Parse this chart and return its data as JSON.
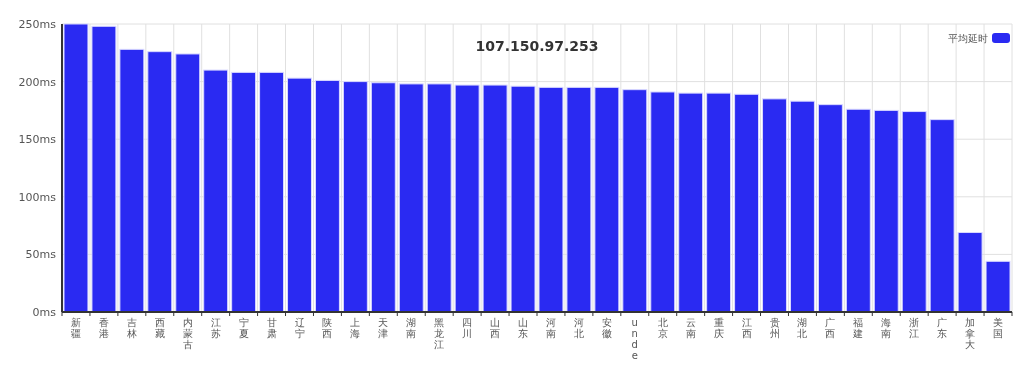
{
  "chart_data": {
    "type": "bar",
    "title": "107.150.97.253",
    "categories": [
      "新疆",
      "香港",
      "吉林",
      "西藏",
      "内蒙古",
      "江苏",
      "宁夏",
      "甘肃",
      "辽宁",
      "陕西",
      "上海",
      "天津",
      "湖南",
      "黑龙江",
      "四川",
      "山西",
      "山东",
      "河南",
      "河北",
      "安徽",
      "unde",
      "北京",
      "云南",
      "重庆",
      "江西",
      "贵州",
      "湖北",
      "广西",
      "福建",
      "海南",
      "浙江",
      "广东",
      "加拿大",
      "美国"
    ],
    "series": [
      {
        "name": "平均延时",
        "color": "#2a2af2",
        "values": [
          250,
          248,
          228,
          226,
          224,
          210,
          208,
          208,
          203,
          201,
          200,
          199,
          198,
          198,
          197,
          197,
          196,
          195,
          195,
          195,
          193,
          191,
          190,
          190,
          189,
          185,
          183,
          180,
          176,
          175,
          174,
          167,
          69,
          44
        ]
      }
    ],
    "ylim": [
      0,
      250
    ],
    "yticks": [
      {
        "value": 0,
        "label": "0ms"
      },
      {
        "value": 50,
        "label": "50ms"
      },
      {
        "value": 100,
        "label": "100ms"
      },
      {
        "value": 150,
        "label": "150ms"
      },
      {
        "value": 200,
        "label": "200ms"
      },
      {
        "value": 250,
        "label": "250ms"
      }
    ],
    "grid": true,
    "legend": "top right"
  }
}
